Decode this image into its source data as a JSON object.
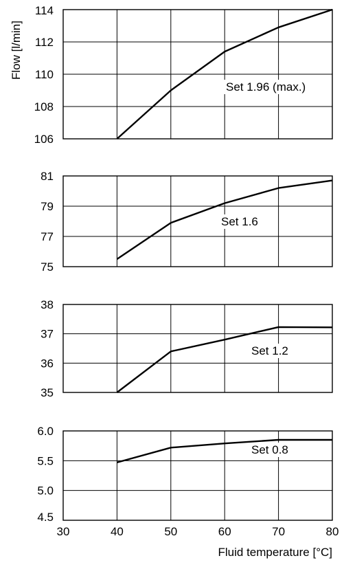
{
  "chart_data": [
    {
      "type": "line",
      "xlabel": "",
      "ylabel": "Flow [l/min]",
      "xlim": [
        30,
        80
      ],
      "ylim": [
        106,
        114
      ],
      "x_ticks": [
        "30",
        "40",
        "50",
        "60",
        "70",
        "80"
      ],
      "y_ticks": [
        "114",
        "112",
        "110",
        "108",
        "106"
      ],
      "grid": true,
      "series": [
        {
          "name": "Set 1.96 (max.)",
          "x": [
            40,
            50,
            60,
            70,
            80
          ],
          "y": [
            106.0,
            109.0,
            111.4,
            112.9,
            114.0
          ]
        }
      ]
    },
    {
      "type": "line",
      "xlabel": "",
      "ylabel": "",
      "xlim": [
        30,
        80
      ],
      "ylim": [
        75,
        81
      ],
      "x_ticks": [
        "30",
        "40",
        "50",
        "60",
        "70",
        "80"
      ],
      "y_ticks": [
        "81",
        "79",
        "77",
        "75"
      ],
      "grid": true,
      "series": [
        {
          "name": "Set 1.6",
          "x": [
            40,
            50,
            60,
            70,
            80
          ],
          "y": [
            75.5,
            77.9,
            79.2,
            80.2,
            80.7
          ]
        }
      ]
    },
    {
      "type": "line",
      "xlabel": "",
      "ylabel": "",
      "xlim": [
        30,
        80
      ],
      "ylim": [
        35,
        38
      ],
      "x_ticks": [
        "30",
        "40",
        "50",
        "60",
        "70",
        "80"
      ],
      "y_ticks": [
        "38",
        "37",
        "36",
        "35"
      ],
      "grid": true,
      "series": [
        {
          "name": "Set 1.2",
          "x": [
            40,
            50,
            60,
            70,
            80
          ],
          "y": [
            35.0,
            36.4,
            36.8,
            37.23,
            37.22
          ]
        }
      ]
    },
    {
      "type": "line",
      "xlabel": "Fluid temperature [°C]",
      "ylabel": "",
      "xlim": [
        30,
        80
      ],
      "ylim": [
        4.5,
        6.0
      ],
      "x_ticks": [
        "30",
        "40",
        "50",
        "60",
        "70",
        "80"
      ],
      "y_ticks": [
        "6.0",
        "5.5",
        "5.0",
        "4.5"
      ],
      "grid": true,
      "series": [
        {
          "name": "Set 0.8",
          "x": [
            40,
            50,
            60,
            70,
            80
          ],
          "y": [
            5.47,
            5.72,
            5.79,
            5.85,
            5.85
          ]
        }
      ]
    }
  ]
}
